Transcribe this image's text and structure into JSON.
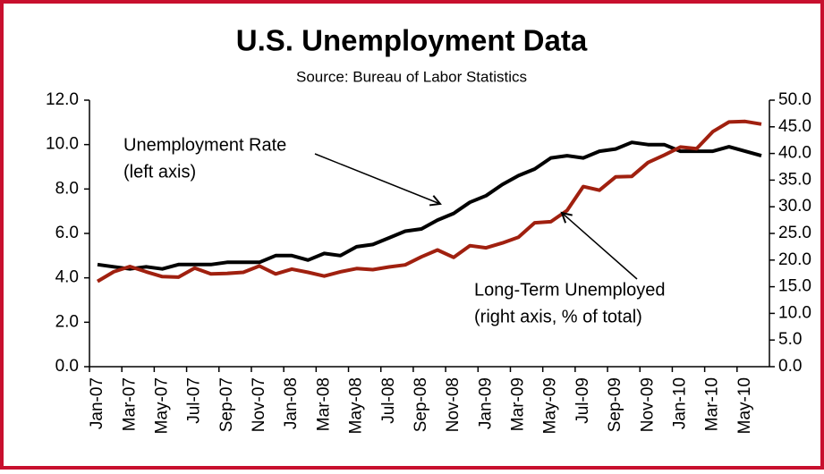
{
  "chart_data": {
    "type": "line",
    "title": "U.S. Unemployment Data",
    "subtitle": "Source: Bureau of Labor Statistics",
    "categories": [
      "Jan-07",
      null,
      "Mar-07",
      null,
      "May-07",
      null,
      "Jul-07",
      null,
      "Sep-07",
      null,
      "Nov-07",
      null,
      "Jan-08",
      null,
      "Mar-08",
      null,
      "May-08",
      null,
      "Jul-08",
      null,
      "Sep-08",
      null,
      "Nov-08",
      null,
      "Jan-09",
      null,
      "Mar-09",
      null,
      "May-09",
      null,
      "Jul-09",
      null,
      "Sep-09",
      null,
      "Nov-09",
      null,
      "Jan-10",
      null,
      "Mar-10",
      null,
      "May-10",
      null
    ],
    "series": [
      {
        "name": "Unemployment Rate",
        "color": "#000000",
        "axis": "y",
        "values": [
          4.6,
          4.5,
          4.4,
          4.5,
          4.4,
          4.6,
          4.6,
          4.6,
          4.7,
          4.7,
          4.7,
          5.0,
          5.0,
          4.8,
          5.1,
          5.0,
          5.4,
          5.5,
          5.8,
          6.1,
          6.2,
          6.6,
          6.9,
          7.4,
          7.7,
          8.2,
          8.6,
          8.9,
          9.4,
          9.5,
          9.4,
          9.7,
          9.8,
          10.1,
          10.0,
          10.0,
          9.7,
          9.7,
          9.7,
          9.9,
          9.7,
          9.5
        ]
      },
      {
        "name": "Long-Term Unemployed",
        "color": "#a0200f",
        "axis": "y2",
        "values": [
          16.0,
          17.8,
          18.8,
          17.8,
          16.9,
          16.8,
          18.5,
          17.4,
          17.5,
          17.7,
          18.9,
          17.4,
          18.3,
          17.7,
          17.0,
          17.8,
          18.4,
          18.2,
          18.7,
          19.1,
          20.6,
          21.9,
          20.5,
          22.7,
          22.3,
          23.2,
          24.3,
          27.0,
          27.2,
          29.3,
          33.8,
          33.1,
          35.6,
          35.7,
          38.3,
          39.7,
          41.2,
          40.9,
          44.1,
          45.9,
          46.0,
          45.5
        ]
      }
    ],
    "ylim": [
      0,
      12
    ],
    "yticks": [
      {
        "value": 0,
        "label": "0.0"
      },
      {
        "value": 2,
        "label": "2.0"
      },
      {
        "value": 4,
        "label": "4.0"
      },
      {
        "value": 6,
        "label": "6.0"
      },
      {
        "value": 8,
        "label": "8.0"
      },
      {
        "value": 10,
        "label": "10.0"
      },
      {
        "value": 12,
        "label": "12.0"
      }
    ],
    "y2lim": [
      0,
      50
    ],
    "y2ticks": [
      {
        "value": 0,
        "label": "0.0"
      },
      {
        "value": 5,
        "label": "5.0"
      },
      {
        "value": 10,
        "label": "10.0"
      },
      {
        "value": 15,
        "label": "15.0"
      },
      {
        "value": 20,
        "label": "20.0"
      },
      {
        "value": 25,
        "label": "25.0"
      },
      {
        "value": 30,
        "label": "30.0"
      },
      {
        "value": 35,
        "label": "35.0"
      },
      {
        "value": 40,
        "label": "40.0"
      },
      {
        "value": 45,
        "label": "45.0"
      },
      {
        "value": 50,
        "label": "50.0"
      }
    ],
    "annotations": [
      {
        "lines": [
          "Unemployment Rate",
          "(left axis)"
        ]
      },
      {
        "lines": [
          "Long-Term Unemployed",
          "(right axis, % of total)"
        ]
      }
    ]
  }
}
